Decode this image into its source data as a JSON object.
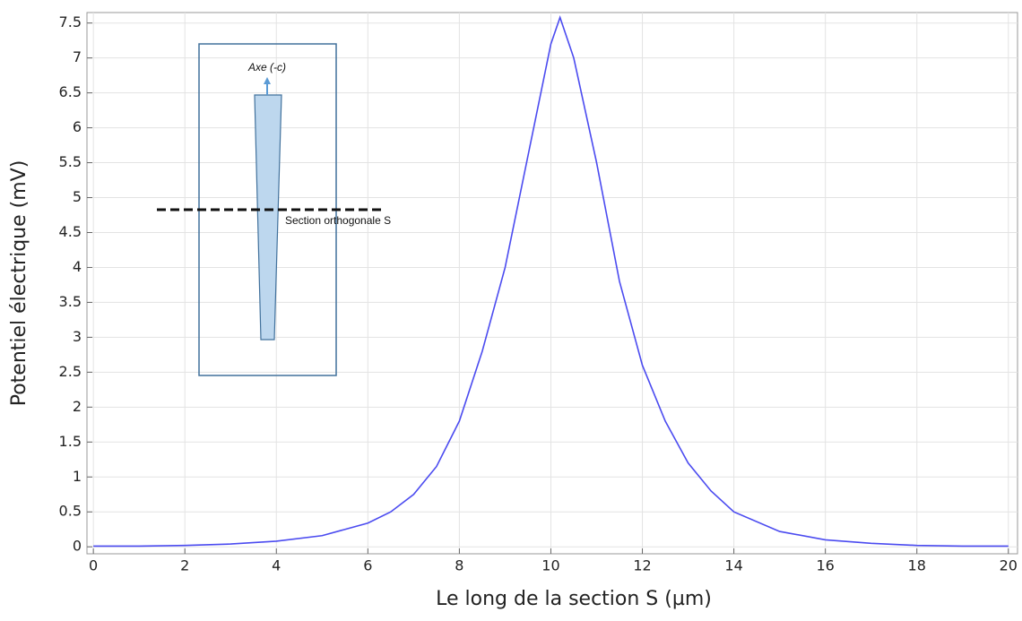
{
  "chart_data": {
    "type": "line",
    "xlabel": "Le long de la section S (µm)",
    "ylabel": "Potentiel électrique (mV)",
    "annotations": [
      "Axe (-c)",
      "Section orthogonale S"
    ],
    "grid": true,
    "xlim": [
      -0.14,
      20.2
    ],
    "ylim": [
      -0.1,
      7.65
    ],
    "xticks": [
      0,
      2,
      4,
      6,
      8,
      10,
      12,
      14,
      16,
      18,
      20
    ],
    "yticks": [
      0,
      0.5,
      1,
      1.5,
      2,
      2.5,
      3,
      3.5,
      4,
      4.5,
      5,
      5.5,
      6,
      6.5,
      7,
      7.5
    ],
    "series": [
      {
        "color": "#4b4bf0",
        "x": [
          0,
          1,
          2,
          3,
          4,
          5,
          6,
          6.5,
          7,
          7.5,
          8,
          8.5,
          9,
          9.5,
          10,
          10.2,
          10.5,
          11,
          11.5,
          12,
          12.5,
          13,
          13.5,
          14,
          15,
          16,
          17,
          18,
          19,
          20
        ],
        "values": [
          0.01,
          0.01,
          0.02,
          0.04,
          0.08,
          0.16,
          0.34,
          0.5,
          0.75,
          1.15,
          1.8,
          2.8,
          4.0,
          5.6,
          7.2,
          7.58,
          7.0,
          5.5,
          3.8,
          2.6,
          1.8,
          1.2,
          0.8,
          0.5,
          0.22,
          0.1,
          0.05,
          0.02,
          0.01,
          0.01
        ]
      }
    ]
  }
}
